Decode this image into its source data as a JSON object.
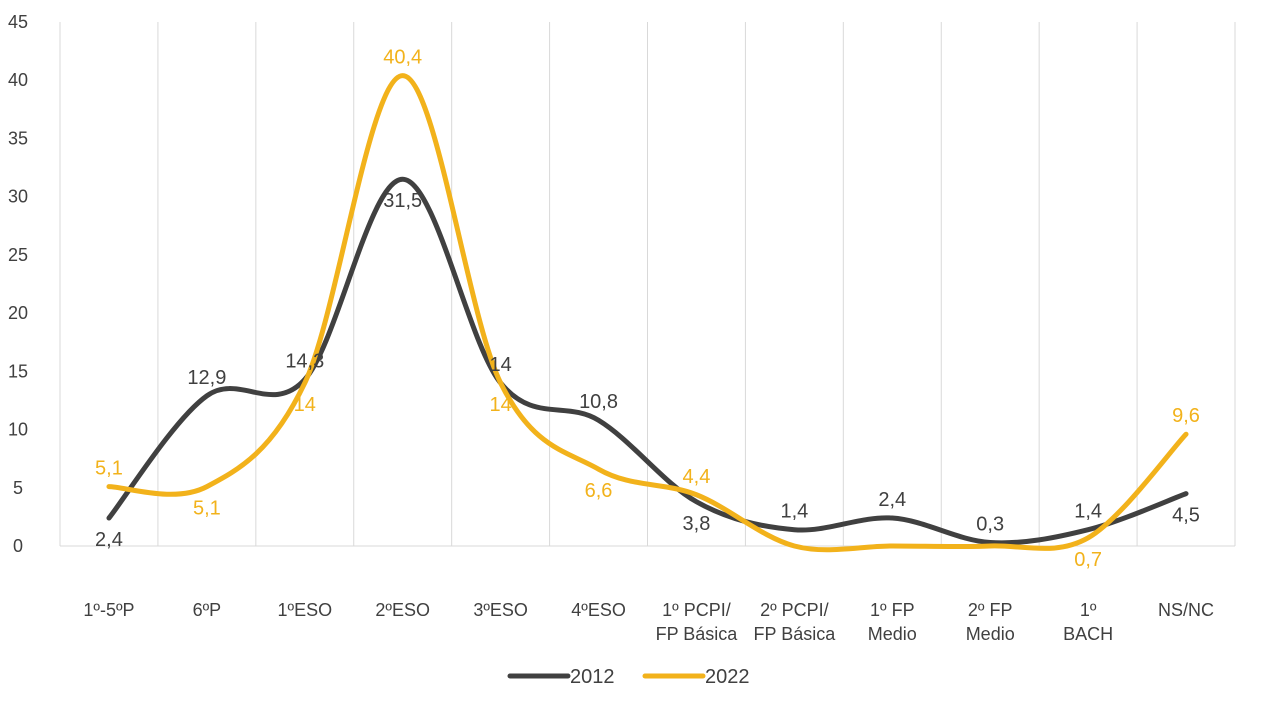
{
  "chart_data": {
    "type": "line",
    "categories": [
      [
        "1º-5ºP"
      ],
      [
        "6ºP"
      ],
      [
        "1ºESO"
      ],
      [
        "2ºESO"
      ],
      [
        "3ºESO"
      ],
      [
        "4ºESO"
      ],
      [
        "1º PCPI/",
        "FP Básica"
      ],
      [
        "2º PCPI/",
        "FP Básica"
      ],
      [
        "1º FP",
        "Medio"
      ],
      [
        "2º FP",
        "Medio"
      ],
      [
        "1º",
        "BACH"
      ],
      [
        "NS/NC"
      ]
    ],
    "series": [
      {
        "name": "2012",
        "color": "#404040",
        "values": [
          2.4,
          12.9,
          14.3,
          31.5,
          14,
          10.8,
          3.8,
          1.4,
          2.4,
          0.3,
          1.4,
          4.5
        ],
        "labels": [
          "2,4",
          "12,9",
          "14,3",
          "31,5",
          "14",
          "10,8",
          "3,8",
          "1,4",
          "2,4",
          "0,3",
          "1,4",
          "4,5"
        ]
      },
      {
        "name": "2022",
        "color": "#F2B21B",
        "values": [
          5.1,
          5.1,
          14,
          40.4,
          14,
          6.6,
          4.4,
          0,
          0,
          0,
          0.7,
          9.6
        ],
        "labels": [
          "5,1",
          "5,1",
          "14",
          "40,4",
          "14",
          "6,6",
          "4,4",
          "",
          "",
          "",
          "0,7",
          "9,6"
        ]
      }
    ],
    "ylim": [
      0,
      45
    ],
    "yticks": [
      0,
      5,
      10,
      15,
      20,
      25,
      30,
      35,
      40,
      45
    ],
    "grid": "vertical",
    "legend_position": "bottom",
    "smooth": true
  }
}
